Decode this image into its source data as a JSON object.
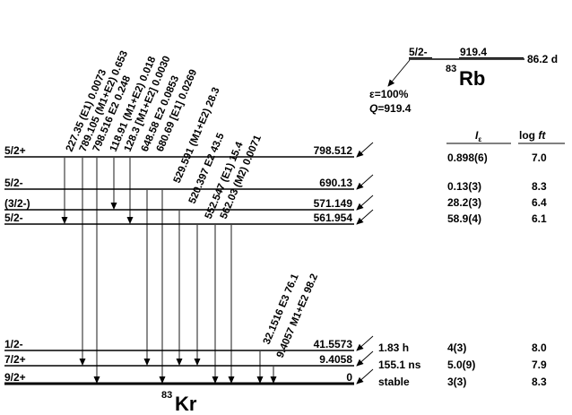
{
  "parent": {
    "spin": "5/2-",
    "energy": "919.4",
    "half_life": "86.2 d",
    "mass": "83",
    "symbol": "Rb",
    "decay_mode": "ε=100%",
    "q_label": "Q",
    "q_value": "=919.4"
  },
  "daughter": {
    "mass": "83",
    "symbol": "Kr"
  },
  "headers": {
    "intensity_main": "I",
    "intensity_sub": "ε",
    "logft": "log ",
    "logft_it": "ft"
  },
  "levels": [
    {
      "spin": "5/2+",
      "energy": "798.512",
      "half_life": "",
      "intensity": "0.898(6)",
      "logft": "7.0"
    },
    {
      "spin": "5/2-",
      "energy": "690.13",
      "half_life": "",
      "intensity": "0.13(3)",
      "logft": "8.3"
    },
    {
      "spin": "(3/2-)",
      "energy": "571.149",
      "half_life": "",
      "intensity": "28.2(3)",
      "logft": "6.4"
    },
    {
      "spin": "5/2-",
      "energy": "561.954",
      "half_life": "",
      "intensity": "58.9(4)",
      "logft": "6.1"
    },
    {
      "spin": "1/2-",
      "energy": "41.5573",
      "half_life": "1.83 h",
      "intensity": "4(3)",
      "logft": "8.0"
    },
    {
      "spin": "7/2+",
      "energy": "9.4058",
      "half_life": "155.1 ns",
      "intensity": "5.0(9)",
      "logft": "7.9"
    },
    {
      "spin": "9/2+",
      "energy": "0",
      "half_life": "stable",
      "intensity": "3(3)",
      "logft": "8.3"
    }
  ],
  "gamma_labels": [
    "227.35 (E1) 0.0073",
    "789.105 (M1+E2) 0.653",
    "798.516 E2 0.248",
    "118.91 (M1+E2) 0.018",
    "128.3 [M1+E2] 0.0030",
    "648.58 E2 0.0853",
    "680.69 [E1] 0.0269",
    "529.591 (M1+E2) 28.3",
    "520.397 E2 43.5",
    "552.547 (E1) 15.4",
    "562.03 (M2) 0.0071",
    "32.1516 E3 76.1",
    "9.4057 M1+E2 98.2"
  ]
}
